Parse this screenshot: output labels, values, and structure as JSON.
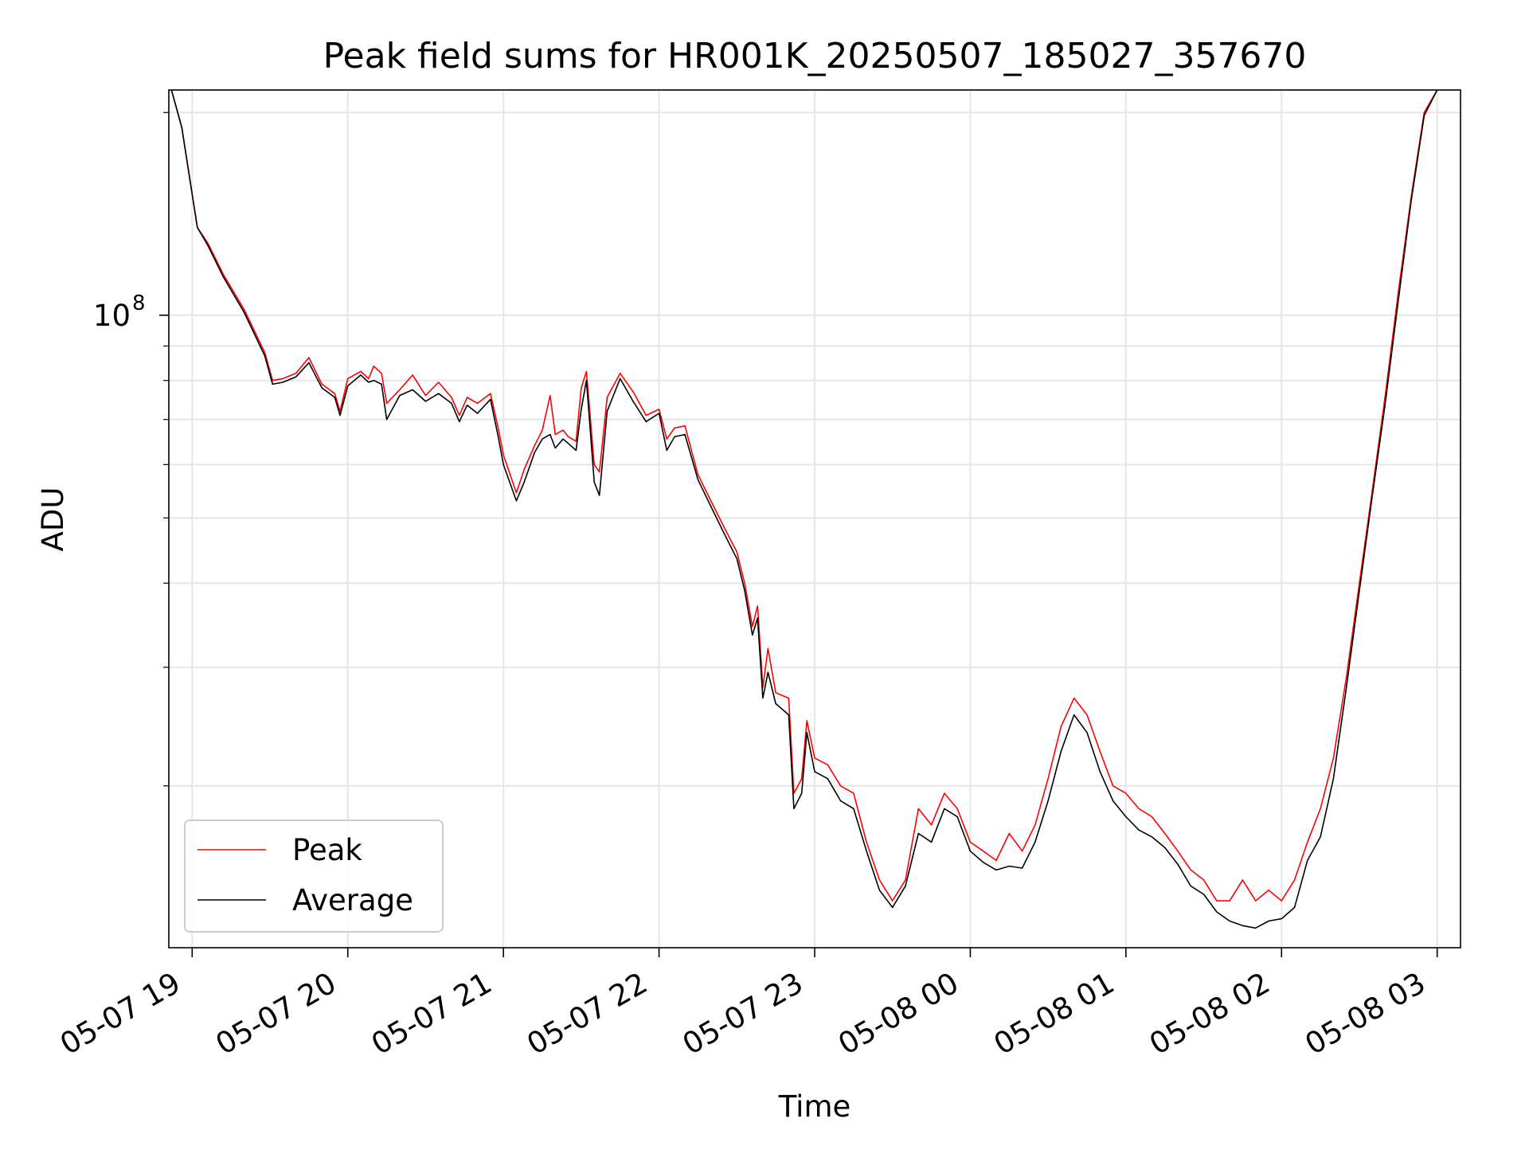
{
  "chart_data": {
    "type": "line",
    "title": "Peak field sums for HR001K_20250507_185027_357670",
    "xlabel": "Time",
    "ylabel": "ADU",
    "yscale": "log",
    "grid": true,
    "legend_position": "lower-left",
    "xlim": [
      "05-07 18:51",
      "05-08 03:09"
    ],
    "ylim": [
      11500000,
      216000000
    ],
    "x_ticks": [
      {
        "t": "05-07 19:00",
        "label": "05-07 19"
      },
      {
        "t": "05-07 20:00",
        "label": "05-07 20"
      },
      {
        "t": "05-07 21:00",
        "label": "05-07 21"
      },
      {
        "t": "05-07 22:00",
        "label": "05-07 22"
      },
      {
        "t": "05-07 23:00",
        "label": "05-07 23"
      },
      {
        "t": "05-08 00:00",
        "label": "05-08 00"
      },
      {
        "t": "05-08 01:00",
        "label": "05-08 01"
      },
      {
        "t": "05-08 02:00",
        "label": "05-08 02"
      },
      {
        "t": "05-08 03:00",
        "label": "05-08 03"
      }
    ],
    "y_major_ticks": [
      {
        "value": 100000000,
        "label_base": "10",
        "label_exp": "8"
      }
    ],
    "y_minor_ticks": [
      20000000,
      30000000,
      40000000,
      50000000,
      60000000,
      70000000,
      80000000,
      90000000,
      200000000
    ],
    "series": [
      {
        "name": "Peak",
        "color": "#ff0000",
        "points": [
          [
            "05-07 18:52",
            216000000
          ],
          [
            "05-07 18:56",
            190000000
          ],
          [
            "05-07 19:02",
            135000000
          ],
          [
            "05-07 19:06",
            128000000
          ],
          [
            "05-07 19:12",
            115000000
          ],
          [
            "05-07 19:20",
            102000000
          ],
          [
            "05-07 19:28",
            88000000
          ],
          [
            "05-07 19:31",
            80000000
          ],
          [
            "05-07 19:35",
            80500000
          ],
          [
            "05-07 19:40",
            82000000
          ],
          [
            "05-07 19:45",
            86500000
          ],
          [
            "05-07 19:50",
            79000000
          ],
          [
            "05-07 19:55",
            76500000
          ],
          [
            "05-07 19:57",
            72000000
          ],
          [
            "05-07 20:00",
            80500000
          ],
          [
            "05-07 20:05",
            82500000
          ],
          [
            "05-07 20:08",
            80500000
          ],
          [
            "05-07 20:10",
            84000000
          ],
          [
            "05-07 20:13",
            82000000
          ],
          [
            "05-07 20:15",
            74000000
          ],
          [
            "05-07 20:20",
            77500000
          ],
          [
            "05-07 20:25",
            81500000
          ],
          [
            "05-07 20:30",
            76000000
          ],
          [
            "05-07 20:35",
            79500000
          ],
          [
            "05-07 20:40",
            75500000
          ],
          [
            "05-07 20:43",
            71000000
          ],
          [
            "05-07 20:46",
            75500000
          ],
          [
            "05-07 20:50",
            74000000
          ],
          [
            "05-07 20:55",
            76500000
          ],
          [
            "05-07 20:58",
            68000000
          ],
          [
            "05-07 21:00",
            62000000
          ],
          [
            "05-07 21:05",
            54500000
          ],
          [
            "05-07 21:08",
            59000000
          ],
          [
            "05-07 21:12",
            64000000
          ],
          [
            "05-07 21:15",
            67500000
          ],
          [
            "05-07 21:18",
            76000000
          ],
          [
            "05-07 21:20",
            66500000
          ],
          [
            "05-07 21:23",
            67500000
          ],
          [
            "05-07 21:25",
            66000000
          ],
          [
            "05-07 21:28",
            65000000
          ],
          [
            "05-07 21:30",
            78000000
          ],
          [
            "05-07 21:32",
            82500000
          ],
          [
            "05-07 21:35",
            60000000
          ],
          [
            "05-07 21:37",
            58500000
          ],
          [
            "05-07 21:40",
            75500000
          ],
          [
            "05-07 21:45",
            82000000
          ],
          [
            "05-07 21:50",
            77000000
          ],
          [
            "05-07 21:55",
            71000000
          ],
          [
            "05-07 22:00",
            72500000
          ],
          [
            "05-07 22:03",
            65500000
          ],
          [
            "05-07 22:06",
            68000000
          ],
          [
            "05-07 22:10",
            68500000
          ],
          [
            "05-07 22:15",
            58000000
          ],
          [
            "05-07 22:20",
            53000000
          ],
          [
            "05-07 22:25",
            48500000
          ],
          [
            "05-07 22:30",
            44500000
          ],
          [
            "05-07 22:33",
            40000000
          ],
          [
            "05-07 22:36",
            34500000
          ],
          [
            "05-07 22:38",
            37000000
          ],
          [
            "05-07 22:40",
            28000000
          ],
          [
            "05-07 22:42",
            32000000
          ],
          [
            "05-07 22:45",
            27500000
          ],
          [
            "05-07 22:50",
            27000000
          ],
          [
            "05-07 22:52",
            19500000
          ],
          [
            "05-07 22:55",
            20500000
          ],
          [
            "05-07 22:57",
            25000000
          ],
          [
            "05-07 23:00",
            22000000
          ],
          [
            "05-07 23:05",
            21500000
          ],
          [
            "05-07 23:10",
            20000000
          ],
          [
            "05-07 23:15",
            19500000
          ],
          [
            "05-07 23:20",
            16500000
          ],
          [
            "05-07 23:25",
            14500000
          ],
          [
            "05-07 23:30",
            13500000
          ],
          [
            "05-07 23:35",
            14500000
          ],
          [
            "05-07 23:40",
            18500000
          ],
          [
            "05-07 23:45",
            17500000
          ],
          [
            "05-07 23:50",
            19500000
          ],
          [
            "05-07 23:55",
            18500000
          ],
          [
            "05-08 00:00",
            16500000
          ],
          [
            "05-08 00:05",
            16000000
          ],
          [
            "05-08 00:10",
            15500000
          ],
          [
            "05-08 00:15",
            17000000
          ],
          [
            "05-08 00:20",
            16000000
          ],
          [
            "05-08 00:25",
            17500000
          ],
          [
            "05-08 00:30",
            20500000
          ],
          [
            "05-08 00:35",
            24500000
          ],
          [
            "05-08 00:40",
            27000000
          ],
          [
            "05-08 00:45",
            25500000
          ],
          [
            "05-08 00:50",
            22500000
          ],
          [
            "05-08 00:55",
            20000000
          ],
          [
            "05-08 01:00",
            19500000
          ],
          [
            "05-08 01:05",
            18500000
          ],
          [
            "05-08 01:10",
            18000000
          ],
          [
            "05-08 01:15",
            17000000
          ],
          [
            "05-08 01:20",
            16000000
          ],
          [
            "05-08 01:25",
            15000000
          ],
          [
            "05-08 01:30",
            14500000
          ],
          [
            "05-08 01:35",
            13500000
          ],
          [
            "05-08 01:40",
            13500000
          ],
          [
            "05-08 01:45",
            14500000
          ],
          [
            "05-08 01:50",
            13500000
          ],
          [
            "05-08 01:55",
            14000000
          ],
          [
            "05-08 02:00",
            13500000
          ],
          [
            "05-08 02:05",
            14500000
          ],
          [
            "05-08 02:10",
            16500000
          ],
          [
            "05-08 02:15",
            18500000
          ],
          [
            "05-08 02:20",
            22000000
          ],
          [
            "05-08 02:25",
            29000000
          ],
          [
            "05-08 02:30",
            40000000
          ],
          [
            "05-08 02:35",
            55000000
          ],
          [
            "05-08 02:40",
            76000000
          ],
          [
            "05-08 02:45",
            108000000
          ],
          [
            "05-08 02:50",
            150000000
          ],
          [
            "05-08 02:55",
            200000000
          ],
          [
            "05-08 03:00",
            216000000
          ]
        ]
      },
      {
        "name": "Average",
        "color": "#000000",
        "points": [
          [
            "05-07 18:52",
            216000000
          ],
          [
            "05-07 18:56",
            190000000
          ],
          [
            "05-07 19:02",
            135000000
          ],
          [
            "05-07 19:06",
            127000000
          ],
          [
            "05-07 19:12",
            114000000
          ],
          [
            "05-07 19:20",
            101000000
          ],
          [
            "05-07 19:28",
            87000000
          ],
          [
            "05-07 19:31",
            79000000
          ],
          [
            "05-07 19:35",
            79500000
          ],
          [
            "05-07 19:40",
            81000000
          ],
          [
            "05-07 19:45",
            85000000
          ],
          [
            "05-07 19:50",
            78000000
          ],
          [
            "05-07 19:55",
            75500000
          ],
          [
            "05-07 19:57",
            71000000
          ],
          [
            "05-07 20:00",
            78500000
          ],
          [
            "05-07 20:05",
            81500000
          ],
          [
            "05-07 20:08",
            79500000
          ],
          [
            "05-07 20:10",
            80000000
          ],
          [
            "05-07 20:13",
            79000000
          ],
          [
            "05-07 20:15",
            70000000
          ],
          [
            "05-07 20:20",
            76000000
          ],
          [
            "05-07 20:25",
            77500000
          ],
          [
            "05-07 20:30",
            74500000
          ],
          [
            "05-07 20:35",
            76500000
          ],
          [
            "05-07 20:40",
            74000000
          ],
          [
            "05-07 20:43",
            69500000
          ],
          [
            "05-07 20:46",
            73500000
          ],
          [
            "05-07 20:50",
            71500000
          ],
          [
            "05-07 20:55",
            75000000
          ],
          [
            "05-07 20:58",
            66000000
          ],
          [
            "05-07 21:00",
            60000000
          ],
          [
            "05-07 21:05",
            53000000
          ],
          [
            "05-07 21:08",
            56500000
          ],
          [
            "05-07 21:12",
            62500000
          ],
          [
            "05-07 21:15",
            65500000
          ],
          [
            "05-07 21:18",
            66500000
          ],
          [
            "05-07 21:20",
            63500000
          ],
          [
            "05-07 21:23",
            65500000
          ],
          [
            "05-07 21:25",
            64500000
          ],
          [
            "05-07 21:28",
            63000000
          ],
          [
            "05-07 21:30",
            72500000
          ],
          [
            "05-07 21:32",
            80000000
          ],
          [
            "05-07 21:35",
            56500000
          ],
          [
            "05-07 21:37",
            54000000
          ],
          [
            "05-07 21:40",
            72000000
          ],
          [
            "05-07 21:45",
            80500000
          ],
          [
            "05-07 21:50",
            74500000
          ],
          [
            "05-07 21:55",
            69500000
          ],
          [
            "05-07 22:00",
            71500000
          ],
          [
            "05-07 22:03",
            63000000
          ],
          [
            "05-07 22:06",
            66000000
          ],
          [
            "05-07 22:10",
            66500000
          ],
          [
            "05-07 22:15",
            57000000
          ],
          [
            "05-07 22:20",
            52000000
          ],
          [
            "05-07 22:25",
            47500000
          ],
          [
            "05-07 22:30",
            43500000
          ],
          [
            "05-07 22:33",
            39000000
          ],
          [
            "05-07 22:36",
            33500000
          ],
          [
            "05-07 22:38",
            35500000
          ],
          [
            "05-07 22:40",
            27000000
          ],
          [
            "05-07 22:42",
            29500000
          ],
          [
            "05-07 22:45",
            26500000
          ],
          [
            "05-07 22:50",
            25500000
          ],
          [
            "05-07 22:52",
            18500000
          ],
          [
            "05-07 22:55",
            19500000
          ],
          [
            "05-07 22:57",
            24000000
          ],
          [
            "05-07 23:00",
            21000000
          ],
          [
            "05-07 23:05",
            20500000
          ],
          [
            "05-07 23:10",
            19000000
          ],
          [
            "05-07 23:15",
            18500000
          ],
          [
            "05-07 23:20",
            16000000
          ],
          [
            "05-07 23:25",
            14000000
          ],
          [
            "05-07 23:30",
            13200000
          ],
          [
            "05-07 23:35",
            14200000
          ],
          [
            "05-07 23:40",
            17000000
          ],
          [
            "05-07 23:45",
            16500000
          ],
          [
            "05-07 23:50",
            18500000
          ],
          [
            "05-07 23:55",
            18000000
          ],
          [
            "05-08 00:00",
            16000000
          ],
          [
            "05-08 00:05",
            15400000
          ],
          [
            "05-08 00:10",
            15000000
          ],
          [
            "05-08 00:15",
            15200000
          ],
          [
            "05-08 00:20",
            15100000
          ],
          [
            "05-08 00:25",
            16500000
          ],
          [
            "05-08 00:30",
            19000000
          ],
          [
            "05-08 00:35",
            22500000
          ],
          [
            "05-08 00:40",
            25500000
          ],
          [
            "05-08 00:45",
            24000000
          ],
          [
            "05-08 00:50",
            21000000
          ],
          [
            "05-08 00:55",
            19000000
          ],
          [
            "05-08 01:00",
            18000000
          ],
          [
            "05-08 01:05",
            17200000
          ],
          [
            "05-08 01:10",
            16800000
          ],
          [
            "05-08 01:15",
            16200000
          ],
          [
            "05-08 01:20",
            15300000
          ],
          [
            "05-08 01:25",
            14200000
          ],
          [
            "05-08 01:30",
            13800000
          ],
          [
            "05-08 01:35",
            13000000
          ],
          [
            "05-08 01:40",
            12600000
          ],
          [
            "05-08 01:45",
            12400000
          ],
          [
            "05-08 01:50",
            12300000
          ],
          [
            "05-08 01:55",
            12600000
          ],
          [
            "05-08 02:00",
            12700000
          ],
          [
            "05-08 02:05",
            13200000
          ],
          [
            "05-08 02:10",
            15500000
          ],
          [
            "05-08 02:15",
            16800000
          ],
          [
            "05-08 02:20",
            20500000
          ],
          [
            "05-08 02:25",
            28000000
          ],
          [
            "05-08 02:30",
            39000000
          ],
          [
            "05-08 02:35",
            54000000
          ],
          [
            "05-08 02:40",
            74000000
          ],
          [
            "05-08 02:45",
            105000000
          ],
          [
            "05-08 02:50",
            148000000
          ],
          [
            "05-08 02:55",
            198000000
          ],
          [
            "05-08 03:00",
            216000000
          ]
        ]
      }
    ]
  }
}
